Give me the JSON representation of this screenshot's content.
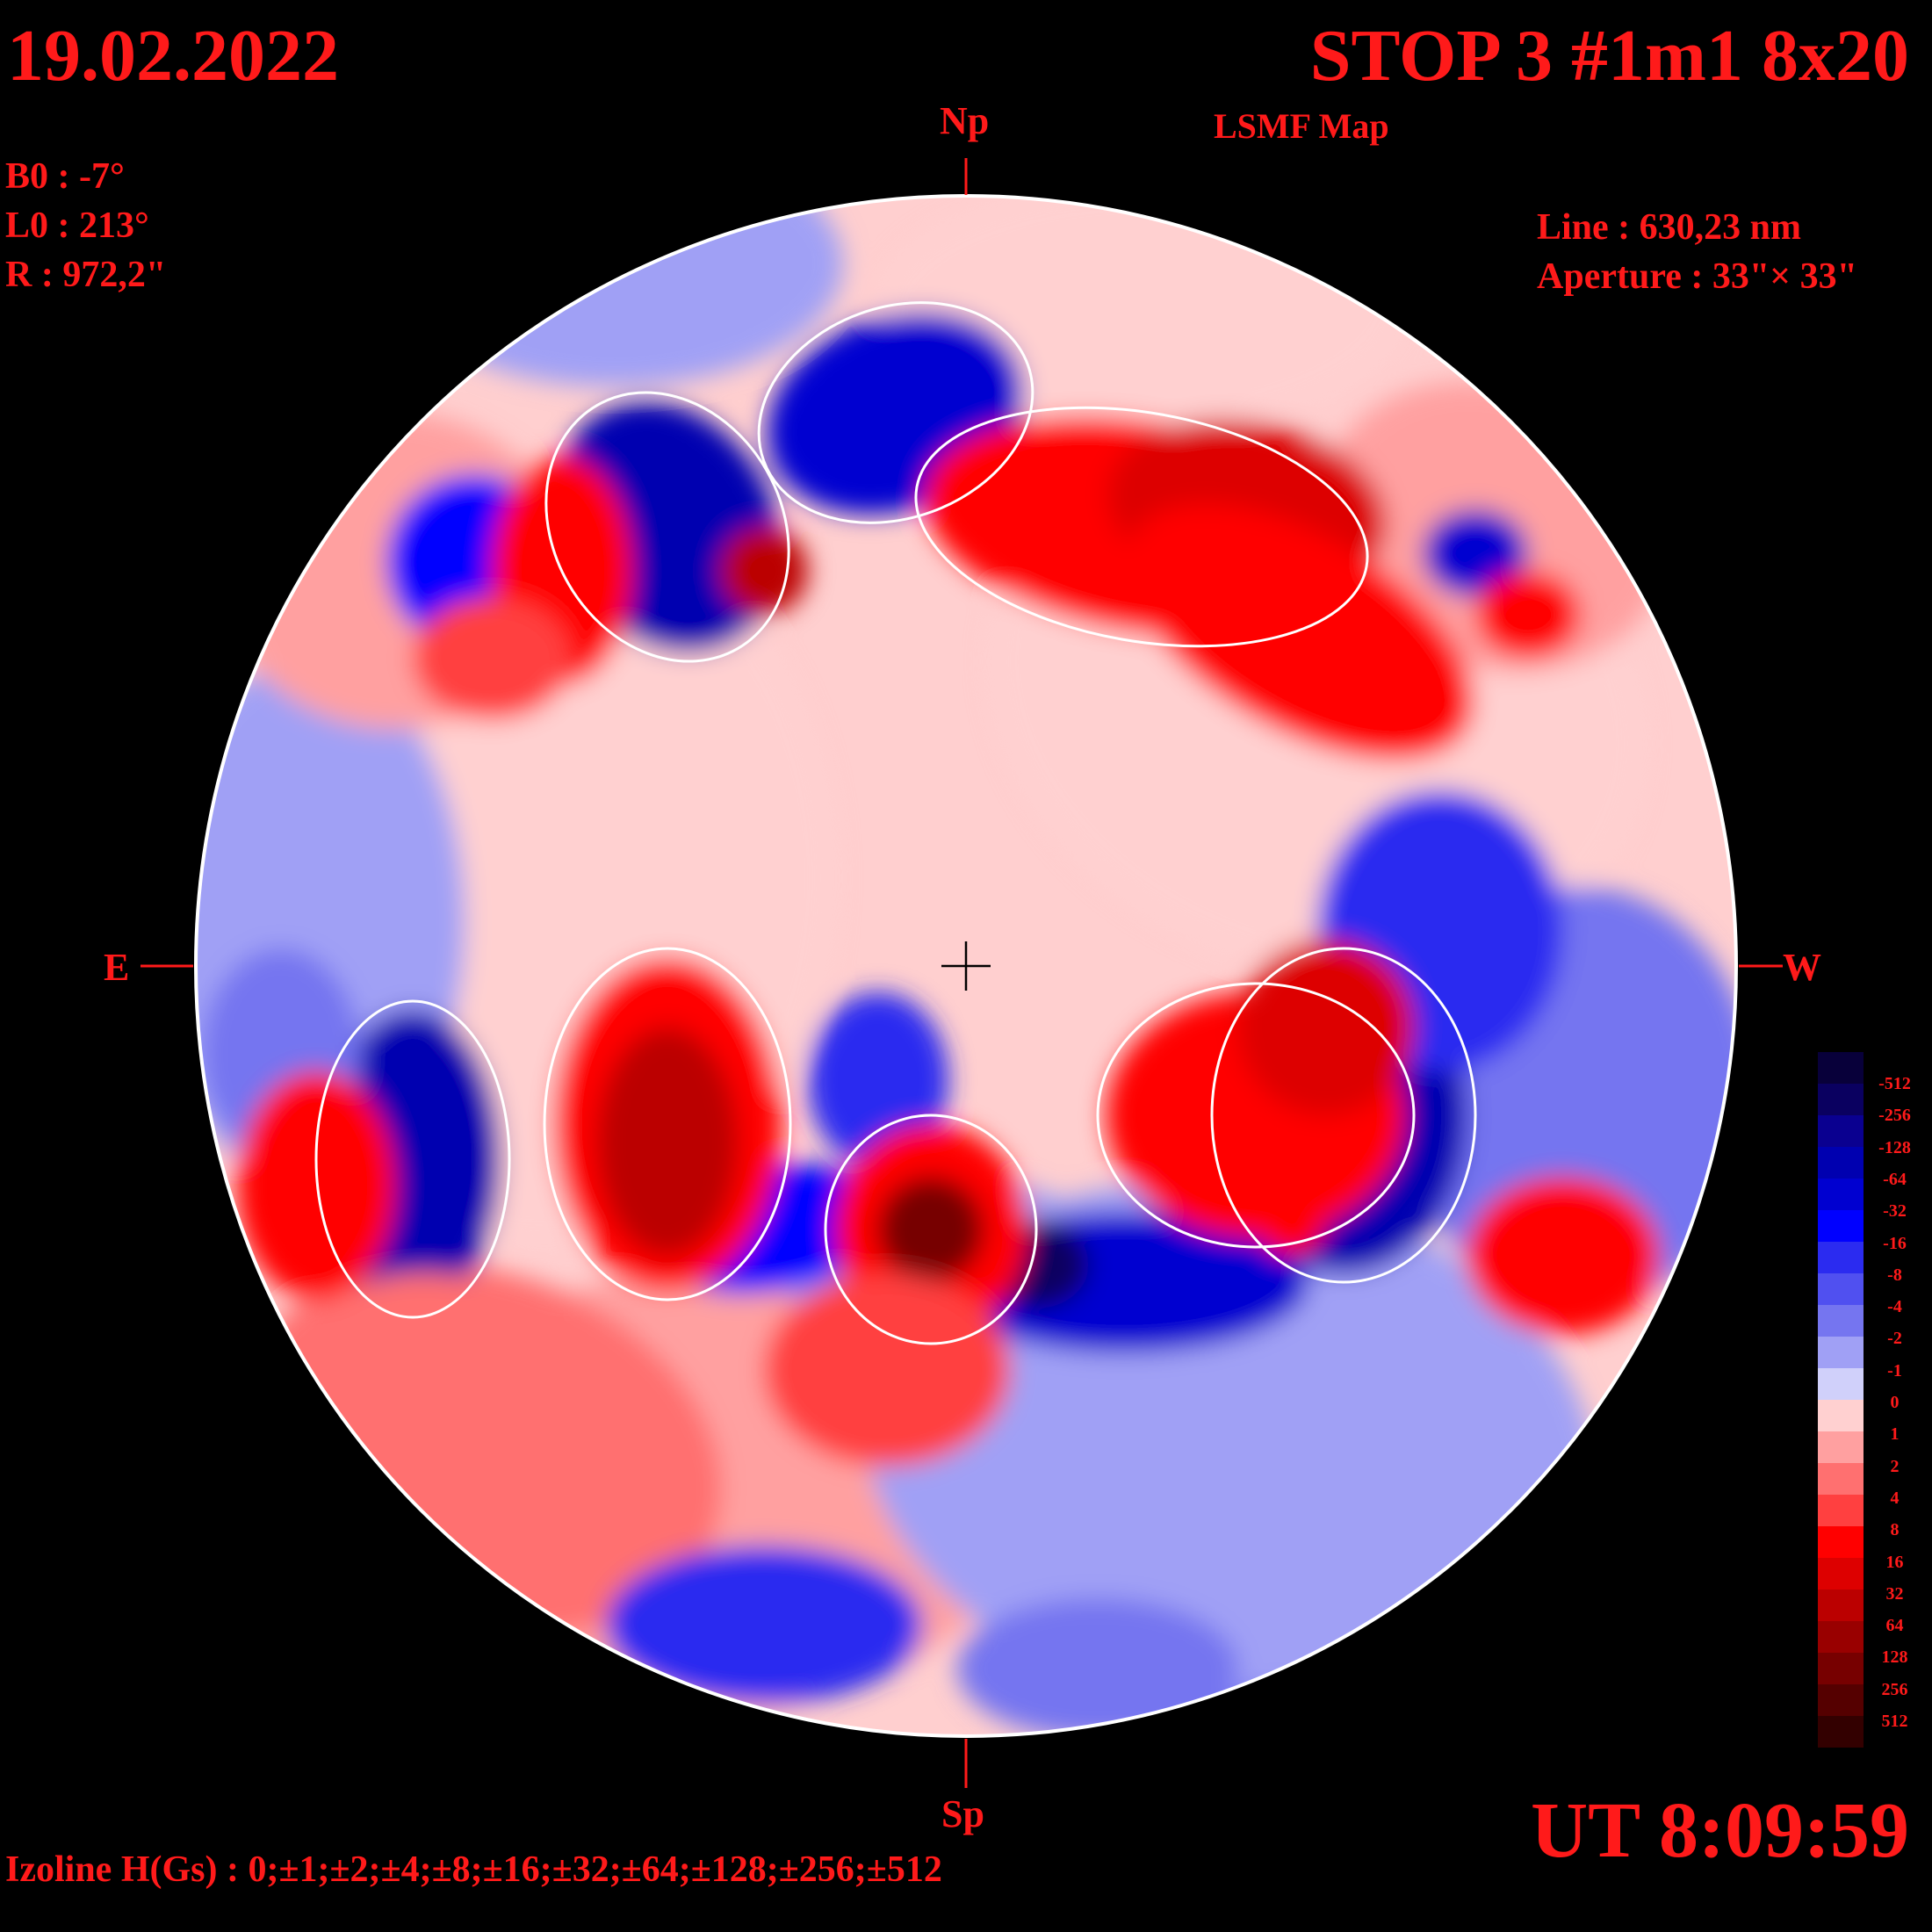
{
  "header": {
    "date": "19.02.2022",
    "title": "STOP 3 #1m1 8x20",
    "subtitle": "LSMF  Map"
  },
  "params": {
    "b0": "B0 : -7°",
    "l0": "L0 : 213°",
    "r": "R  : 972,2\""
  },
  "instrument": {
    "line": "Line :  630,23 nm",
    "aperture": "Aperture : 33\"× 33\""
  },
  "directions": {
    "north": "Np",
    "south": "Sp",
    "east": "E",
    "west": "W"
  },
  "time": "UT 8:09:59",
  "footer": {
    "izoline": "Izoline H(Gs) : 0;±1;±2;±4;±8;±16;±32;±64;±128;±256;±512"
  },
  "colorbar": {
    "labels": [
      "-512",
      "-256",
      "-128",
      "-64",
      "-32",
      "-16",
      "-8",
      "-4",
      "-2",
      "-1",
      "0",
      "1",
      "2",
      "4",
      "8",
      "16",
      "32",
      "64",
      "128",
      "256",
      "512"
    ],
    "colors": [
      "#08003a",
      "#0a0060",
      "#0a0090",
      "#0000b0",
      "#0000d0",
      "#0000ff",
      "#2b2bf0",
      "#5050f0",
      "#7575f0",
      "#a0a0f5",
      "#d0d0fa",
      "#ffd0d0",
      "#ffa0a0",
      "#ff7070",
      "#ff4040",
      "#ff0000",
      "#dd0000",
      "#bb0000",
      "#990000",
      "#770000",
      "#550000",
      "#330000"
    ]
  }
}
